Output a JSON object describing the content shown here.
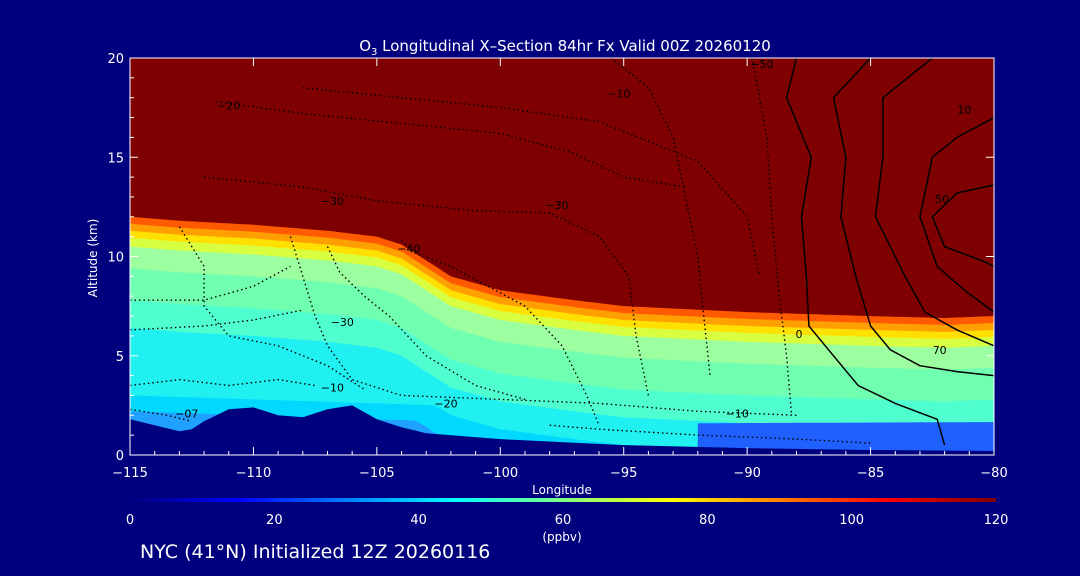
{
  "chart_data": {
    "type": "heatmap",
    "title_prefix": "O",
    "title_sub": "3",
    "title_rest": " Longitudinal X–Section 84hr  Fx Valid 00Z 20260120",
    "xlabel": "Longitude",
    "ylabel": "Altitude (km)",
    "xlim": [
      -115,
      -80
    ],
    "ylim": [
      0,
      20
    ],
    "x_ticks": [
      -115,
      -110,
      -105,
      -100,
      -95,
      -90,
      -85,
      -80
    ],
    "x_tick_labels": [
      "−115",
      "−110",
      "−105",
      "−100",
      "−95",
      "−90",
      "−85",
      "−80"
    ],
    "y_ticks": [
      0,
      5,
      10,
      15,
      20
    ],
    "y_tick_labels": [
      "0",
      "5",
      "10",
      "15",
      "20"
    ],
    "grid": false,
    "colorbar": {
      "min": 0,
      "max": 120,
      "unit": "(ppbv)",
      "ticks": [
        0,
        20,
        40,
        60,
        80,
        100,
        120
      ],
      "tick_labels": [
        "0",
        "20",
        "40",
        "60",
        "80",
        "100",
        "120"
      ],
      "colors": [
        "#00007f",
        "#0000ff",
        "#0080ff",
        "#00ffff",
        "#80ff80",
        "#ffff00",
        "#ff8000",
        "#ff0000",
        "#7f0000"
      ]
    },
    "ozone_transition": {
      "lon": [
        -115,
        -113,
        -110,
        -107,
        -105,
        -104,
        -102,
        -100,
        -97,
        -95,
        -90,
        -85,
        -82,
        -80
      ],
      "alt": [
        12,
        11.8,
        11.6,
        11.3,
        11.0,
        10.6,
        9.0,
        8.3,
        7.8,
        7.5,
        7.2,
        7.0,
        6.9,
        7.0
      ]
    },
    "terrain": {
      "lon": [
        -115,
        -114,
        -113,
        -112.5,
        -112,
        -111,
        -110,
        -109.5,
        -109,
        -108,
        -107,
        -106,
        -105,
        -104,
        -103,
        -100,
        -95,
        -90,
        -85,
        -80
      ],
      "alt": [
        1.8,
        1.5,
        1.2,
        1.3,
        1.7,
        2.3,
        2.4,
        2.2,
        2.0,
        1.9,
        2.3,
        2.5,
        1.8,
        1.4,
        1.1,
        0.8,
        0.5,
        0.35,
        0.25,
        0.2
      ]
    },
    "contour_labels": [
      {
        "text": "−20",
        "lon": -111,
        "alt": 17.4
      },
      {
        "text": "−10",
        "lon": -95.2,
        "alt": 18.0
      },
      {
        "text": "−50",
        "lon": -89.4,
        "alt": 19.5
      },
      {
        "text": "−30",
        "lon": -106.8,
        "alt": 12.6
      },
      {
        "text": "−30",
        "lon": -97.7,
        "alt": 12.4
      },
      {
        "text": "−40",
        "lon": -103.7,
        "alt": 10.2
      },
      {
        "text": "−30",
        "lon": -106.4,
        "alt": 6.5
      },
      {
        "text": "−10",
        "lon": -106.8,
        "alt": 3.2
      },
      {
        "text": "−20",
        "lon": -102.2,
        "alt": 2.4
      },
      {
        "text": "−10",
        "lon": -90.4,
        "alt": 1.9
      },
      {
        "text": "−07",
        "lon": -112.7,
        "alt": 1.9
      },
      {
        "text": "0",
        "lon": -87.9,
        "alt": 5.9
      },
      {
        "text": "70",
        "lon": -82.2,
        "alt": 5.1
      },
      {
        "text": "10",
        "lon": -81.2,
        "alt": 17.2
      },
      {
        "text": "50",
        "lon": -82.1,
        "alt": 12.7
      }
    ]
  },
  "footer": "NYC (41°N) Initialized 12Z 20260116"
}
